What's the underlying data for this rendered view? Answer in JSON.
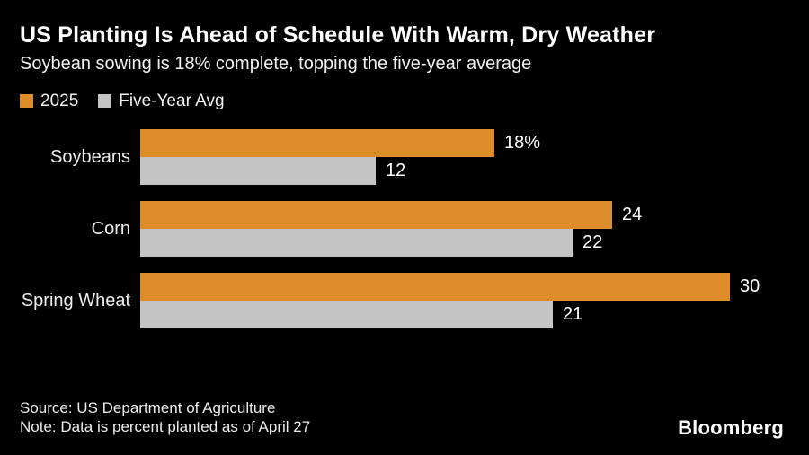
{
  "header": {
    "title": "US Planting Is Ahead of Schedule With Warm, Dry Weather",
    "subtitle": "Soybean sowing is 18% complete, topping the five-year average"
  },
  "chart_data": {
    "type": "bar",
    "orientation": "horizontal",
    "title": "US Planting Is Ahead of Schedule With Warm, Dry Weather",
    "subtitle": "Soybean sowing is 18% complete, topping the five-year average",
    "categories": [
      "Soybeans",
      "Corn",
      "Spring Wheat"
    ],
    "series": [
      {
        "name": "2025",
        "color": "#DD8D29",
        "values": [
          18,
          24,
          30
        ],
        "value_labels": [
          "18%",
          "24",
          "30"
        ]
      },
      {
        "name": "Five-Year Avg",
        "color": "#C4C4C4",
        "values": [
          12,
          22,
          21
        ],
        "value_labels": [
          "12",
          "22",
          "21"
        ]
      }
    ],
    "unit": "percent planted",
    "xlim": [
      0,
      30
    ],
    "grid": false,
    "legend_position": "top-left",
    "background": "#000000",
    "value_label_color": "#FFFFFF"
  },
  "footer": {
    "source": "Source: US Department of Agriculture",
    "note": "Note: Data is percent planted as of April 27",
    "brand": "Bloomberg"
  }
}
